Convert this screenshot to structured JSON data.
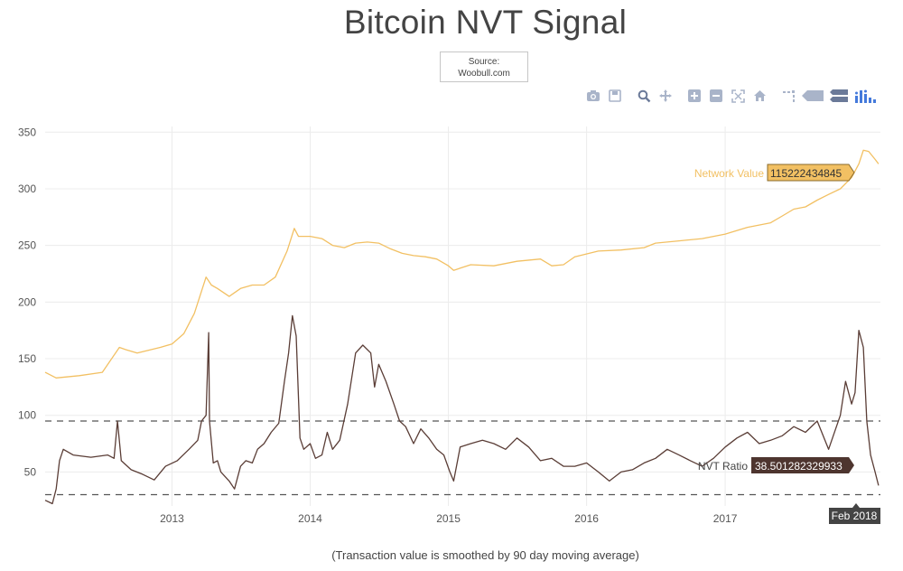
{
  "title": "Bitcoin NVT Signal",
  "source": {
    "line1": "Source:",
    "line2": "Woobull.com"
  },
  "caption": "(Transaction value is smoothed by 90 day moving average)",
  "toolbar": {
    "icons": [
      "camera-icon",
      "save-icon",
      "zoom-icon",
      "pan-icon",
      "zoom-in-icon",
      "zoom-out-icon",
      "autoscale-icon",
      "home-icon",
      "spike-lines-icon",
      "hover-closest-icon",
      "hover-compare-icon",
      "plotly-logo-icon"
    ],
    "colors": {
      "icon": "#a9b4c9",
      "logo": "#447adb"
    }
  },
  "chart_data": {
    "type": "line",
    "title": "Bitcoin NVT Signal",
    "xlabel": "",
    "ylabel": "",
    "x_ticks": [
      "2013",
      "2014",
      "2015",
      "2016",
      "2017"
    ],
    "y_ticks": [
      "50",
      "100",
      "150",
      "200",
      "250",
      "300",
      "350"
    ],
    "ylim": [
      20,
      355
    ],
    "xlim": [
      "2012-02-01",
      "2018-02-15"
    ],
    "grid": true,
    "reference_lines": [
      {
        "y": 95,
        "style": "dashed"
      },
      {
        "y": 30,
        "style": "dashed"
      }
    ],
    "series": [
      {
        "name": "Network Value",
        "color": "#f2c063",
        "hover_value": "115222434845",
        "x": [
          "2012-02-01",
          "2012-03-01",
          "2012-05-01",
          "2012-07-01",
          "2012-08-15",
          "2012-09-01",
          "2012-10-01",
          "2012-12-01",
          "2013-01-01",
          "2013-02-01",
          "2013-03-01",
          "2013-04-01",
          "2013-04-15",
          "2013-05-01",
          "2013-06-01",
          "2013-07-01",
          "2013-08-01",
          "2013-09-01",
          "2013-10-01",
          "2013-11-01",
          "2013-11-20",
          "2013-12-01",
          "2014-01-01",
          "2014-02-01",
          "2014-03-01",
          "2014-04-01",
          "2014-05-01",
          "2014-06-01",
          "2014-07-01",
          "2014-08-01",
          "2014-09-01",
          "2014-10-01",
          "2014-11-01",
          "2014-12-01",
          "2015-01-01",
          "2015-01-15",
          "2015-03-01",
          "2015-05-01",
          "2015-07-01",
          "2015-09-01",
          "2015-10-01",
          "2015-11-01",
          "2015-12-01",
          "2016-02-01",
          "2016-04-01",
          "2016-06-01",
          "2016-07-01",
          "2016-09-01",
          "2016-11-01",
          "2017-01-01",
          "2017-03-01",
          "2017-05-01",
          "2017-06-01",
          "2017-07-01",
          "2017-08-01",
          "2017-09-01",
          "2017-10-01",
          "2017-11-01",
          "2017-12-01",
          "2017-12-20",
          "2018-01-01",
          "2018-01-15",
          "2018-02-01",
          "2018-02-10"
        ],
        "values": [
          138,
          133,
          135,
          138,
          160,
          158,
          155,
          160,
          163,
          172,
          190,
          222,
          215,
          212,
          205,
          212,
          215,
          215,
          222,
          245,
          265,
          258,
          258,
          256,
          250,
          248,
          252,
          253,
          252,
          247,
          243,
          241,
          240,
          238,
          232,
          228,
          233,
          232,
          236,
          238,
          232,
          233,
          240,
          245,
          246,
          248,
          252,
          254,
          256,
          260,
          266,
          270,
          276,
          282,
          284,
          290,
          295,
          300,
          310,
          322,
          334,
          333,
          326,
          322
        ]
      },
      {
        "name": "NVT Ratio",
        "color": "#5a3d36",
        "hover_value": "38.501282329933",
        "x": [
          "2012-02-01",
          "2012-02-20",
          "2012-03-01",
          "2012-03-10",
          "2012-03-20",
          "2012-04-15",
          "2012-06-01",
          "2012-07-15",
          "2012-08-01",
          "2012-08-10",
          "2012-08-20",
          "2012-09-15",
          "2012-10-15",
          "2012-11-15",
          "2012-12-15",
          "2013-01-15",
          "2013-02-15",
          "2013-03-10",
          "2013-03-20",
          "2013-04-01",
          "2013-04-08",
          "2013-04-10",
          "2013-04-20",
          "2013-05-01",
          "2013-05-10",
          "2013-06-01",
          "2013-06-15",
          "2013-07-01",
          "2013-07-15",
          "2013-08-01",
          "2013-08-15",
          "2013-09-01",
          "2013-09-20",
          "2013-10-10",
          "2013-10-25",
          "2013-11-05",
          "2013-11-15",
          "2013-11-25",
          "2013-12-05",
          "2013-12-15",
          "2014-01-01",
          "2014-01-15",
          "2014-02-01",
          "2014-02-15",
          "2014-03-01",
          "2014-03-20",
          "2014-04-10",
          "2014-05-01",
          "2014-05-20",
          "2014-06-10",
          "2014-06-20",
          "2014-07-01",
          "2014-07-20",
          "2014-08-10",
          "2014-08-25",
          "2014-09-10",
          "2014-10-01",
          "2014-10-20",
          "2014-11-10",
          "2014-12-01",
          "2014-12-20",
          "2015-01-05",
          "2015-01-15",
          "2015-02-01",
          "2015-03-01",
          "2015-04-01",
          "2015-05-01",
          "2015-06-01",
          "2015-07-01",
          "2015-08-01",
          "2015-09-01",
          "2015-10-01",
          "2015-11-01",
          "2015-12-01",
          "2016-01-01",
          "2016-02-01",
          "2016-03-01",
          "2016-04-01",
          "2016-05-01",
          "2016-06-01",
          "2016-07-01",
          "2016-08-01",
          "2016-09-01",
          "2016-10-01",
          "2016-11-01",
          "2016-12-01",
          "2017-01-01",
          "2017-02-01",
          "2017-03-01",
          "2017-04-01",
          "2017-05-01",
          "2017-06-01",
          "2017-07-01",
          "2017-08-01",
          "2017-09-01",
          "2017-10-01",
          "2017-11-01",
          "2017-11-15",
          "2017-12-01",
          "2017-12-10",
          "2017-12-20",
          "2018-01-01",
          "2018-01-10",
          "2018-01-20",
          "2018-02-01",
          "2018-02-10"
        ],
        "values": [
          25,
          22,
          35,
          60,
          70,
          65,
          63,
          65,
          62,
          95,
          60,
          52,
          48,
          43,
          55,
          60,
          70,
          78,
          95,
          100,
          173,
          95,
          58,
          60,
          50,
          42,
          35,
          55,
          60,
          58,
          70,
          75,
          85,
          93,
          130,
          155,
          188,
          170,
          80,
          70,
          75,
          62,
          65,
          85,
          70,
          78,
          110,
          155,
          162,
          155,
          125,
          145,
          130,
          110,
          95,
          90,
          75,
          88,
          80,
          70,
          65,
          50,
          42,
          72,
          75,
          78,
          75,
          70,
          80,
          72,
          60,
          62,
          55,
          55,
          58,
          50,
          42,
          50,
          52,
          58,
          62,
          70,
          65,
          60,
          55,
          62,
          72,
          80,
          85,
          75,
          78,
          82,
          90,
          85,
          95,
          70,
          100,
          130,
          110,
          120,
          175,
          160,
          95,
          65,
          50,
          38
        ]
      }
    ]
  },
  "annotations": {
    "network_value_label": "Network Value",
    "network_value_hover": "115222434845",
    "nvt_label": "NVT Ratio",
    "nvt_hover": "38.501282329933",
    "x_hover": "Feb 2018"
  }
}
